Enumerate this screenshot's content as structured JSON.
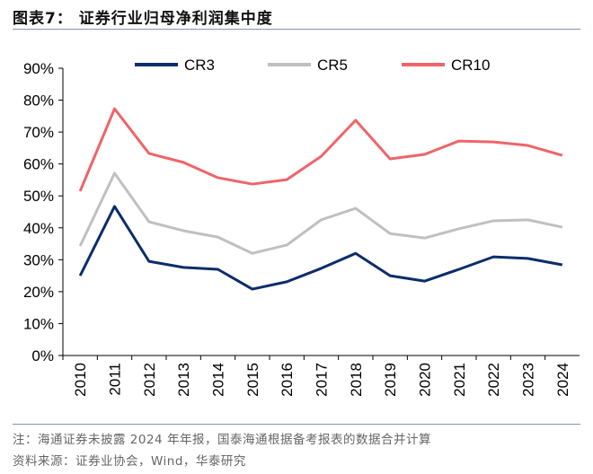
{
  "title": "图表7：  证券行业归母净利润集中度",
  "note": "注：海通证券未披露 2024 年年报，国泰海通根据备考报表的数据合并计算",
  "source": "资料来源：证券业协会，Wind，华泰研究",
  "chart_data": {
    "type": "line",
    "title": "",
    "xlabel": "",
    "ylabel": "",
    "ylim": [
      0,
      90
    ],
    "yticks": [
      "0%",
      "10%",
      "20%",
      "30%",
      "40%",
      "50%",
      "60%",
      "70%",
      "80%",
      "90%"
    ],
    "categories": [
      "2010",
      "2011",
      "2012",
      "2013",
      "2014",
      "2015",
      "2016",
      "2017",
      "2018",
      "2019",
      "2020",
      "2021",
      "2022",
      "2023",
      "2024"
    ],
    "legend_position": "top",
    "grid": false,
    "series": [
      {
        "name": "CR3",
        "color": "#0b2d6b",
        "values": [
          25.0,
          46.7,
          29.5,
          27.6,
          27.0,
          20.8,
          23.1,
          27.3,
          32.0,
          25.0,
          23.3,
          27.0,
          30.9,
          30.4,
          28.4
        ]
      },
      {
        "name": "CR5",
        "color": "#c0c0c0",
        "values": [
          34.3,
          57.1,
          41.9,
          39.1,
          37.1,
          32.0,
          34.6,
          42.5,
          46.1,
          38.2,
          36.8,
          39.7,
          42.2,
          42.5,
          40.2
        ]
      },
      {
        "name": "CR10",
        "color": "#ef6468",
        "values": [
          51.5,
          77.3,
          63.3,
          60.5,
          55.7,
          53.7,
          55.1,
          62.4,
          73.7,
          61.6,
          63.0,
          67.2,
          66.9,
          65.8,
          62.7
        ]
      }
    ]
  }
}
